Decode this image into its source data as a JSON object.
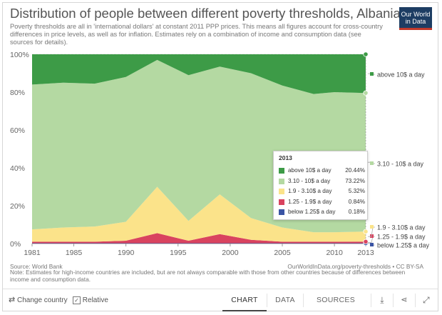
{
  "header": {
    "title": "Distribution of people between different poverty thresholds, Albania",
    "subtitle": "Poverty thresholds are all in 'international dollars' at constant 2011 PPP prices. This means all figures account for cross-country differences in price levels, as well as for inflation. Estimates rely on a combination of income and consumption data (see sources for details).",
    "logo_line1": "Our World",
    "logo_line2": "in Data"
  },
  "colors": {
    "above_10": "#3d9b47",
    "range_310_10": "#b4d9a2",
    "range_19_310": "#fbe38a",
    "range_125_19": "#d9435f",
    "below_125": "#3a54a4"
  },
  "chart_data": {
    "type": "area",
    "stacked": true,
    "relative": true,
    "x": [
      1981,
      1984,
      1987,
      1990,
      1993,
      1996,
      1999,
      2002,
      2005,
      2008,
      2010,
      2013
    ],
    "series": [
      {
        "name": "below 1.25$ a day",
        "values": [
          0.2,
          0.2,
          0.2,
          0.2,
          0.2,
          0.2,
          0.2,
          0.2,
          0.2,
          0.2,
          0.2,
          0.18
        ]
      },
      {
        "name": "1.25 - 1.9$ a day",
        "values": [
          0.8,
          0.8,
          0.8,
          1.3,
          5.3,
          1.3,
          4.8,
          1.8,
          0.8,
          0.8,
          0.8,
          0.84
        ]
      },
      {
        "name": "1.9 - 3.10$ a day",
        "values": [
          6.5,
          7.5,
          8.0,
          10.0,
          24.5,
          10.5,
          21.0,
          11.5,
          7.5,
          5.0,
          5.0,
          5.32
        ]
      },
      {
        "name": "3.10 - 10$ a day",
        "values": [
          76.5,
          76.5,
          75.5,
          76.5,
          67.0,
          77.0,
          67.5,
          76.5,
          75.0,
          73.0,
          74.0,
          73.22
        ]
      },
      {
        "name": "above 10$ a day",
        "values": [
          16.0,
          15.0,
          15.5,
          12.0,
          3.0,
          11.0,
          6.5,
          10.0,
          16.5,
          21.0,
          20.0,
          20.44
        ]
      }
    ],
    "y_ticks": [
      "0%",
      "20%",
      "40%",
      "60%",
      "80%",
      "100%"
    ],
    "x_ticks": [
      "1981",
      "1985",
      "1990",
      "1995",
      "2000",
      "2005",
      "2010",
      "2013"
    ],
    "ylim": [
      0,
      100
    ],
    "grid": true,
    "legend_placement": "right",
    "tooltip": {
      "year": "2013",
      "rows": [
        {
          "name": "above 10$ a day",
          "value": "20.44%",
          "color": "#3d9b47"
        },
        {
          "name": "3.10 - 10$ a day",
          "value": "73.22%",
          "color": "#b4d9a2"
        },
        {
          "name": "1.9 - 3.10$ a day",
          "value": "5.32%",
          "color": "#fbe38a"
        },
        {
          "name": "1.25 - 1.9$ a day",
          "value": "0.84%",
          "color": "#d9435f"
        },
        {
          "name": "below 1.25$ a day",
          "value": "0.18%",
          "color": "#3a54a4"
        }
      ]
    }
  },
  "footer": {
    "source": "Source: World Bank",
    "credit": "OurWorldInData.org/poverty-thresholds • CC BY-SA",
    "note": "Note: Estimates for high-income countries are included, but are not always comparable with those from other countries because of differences between income and consumption data."
  },
  "toolbar": {
    "change_country": "Change country",
    "relative_label": "Relative",
    "tab_chart": "CHART",
    "tab_data": "DATA",
    "tab_sources": "SOURCES"
  }
}
